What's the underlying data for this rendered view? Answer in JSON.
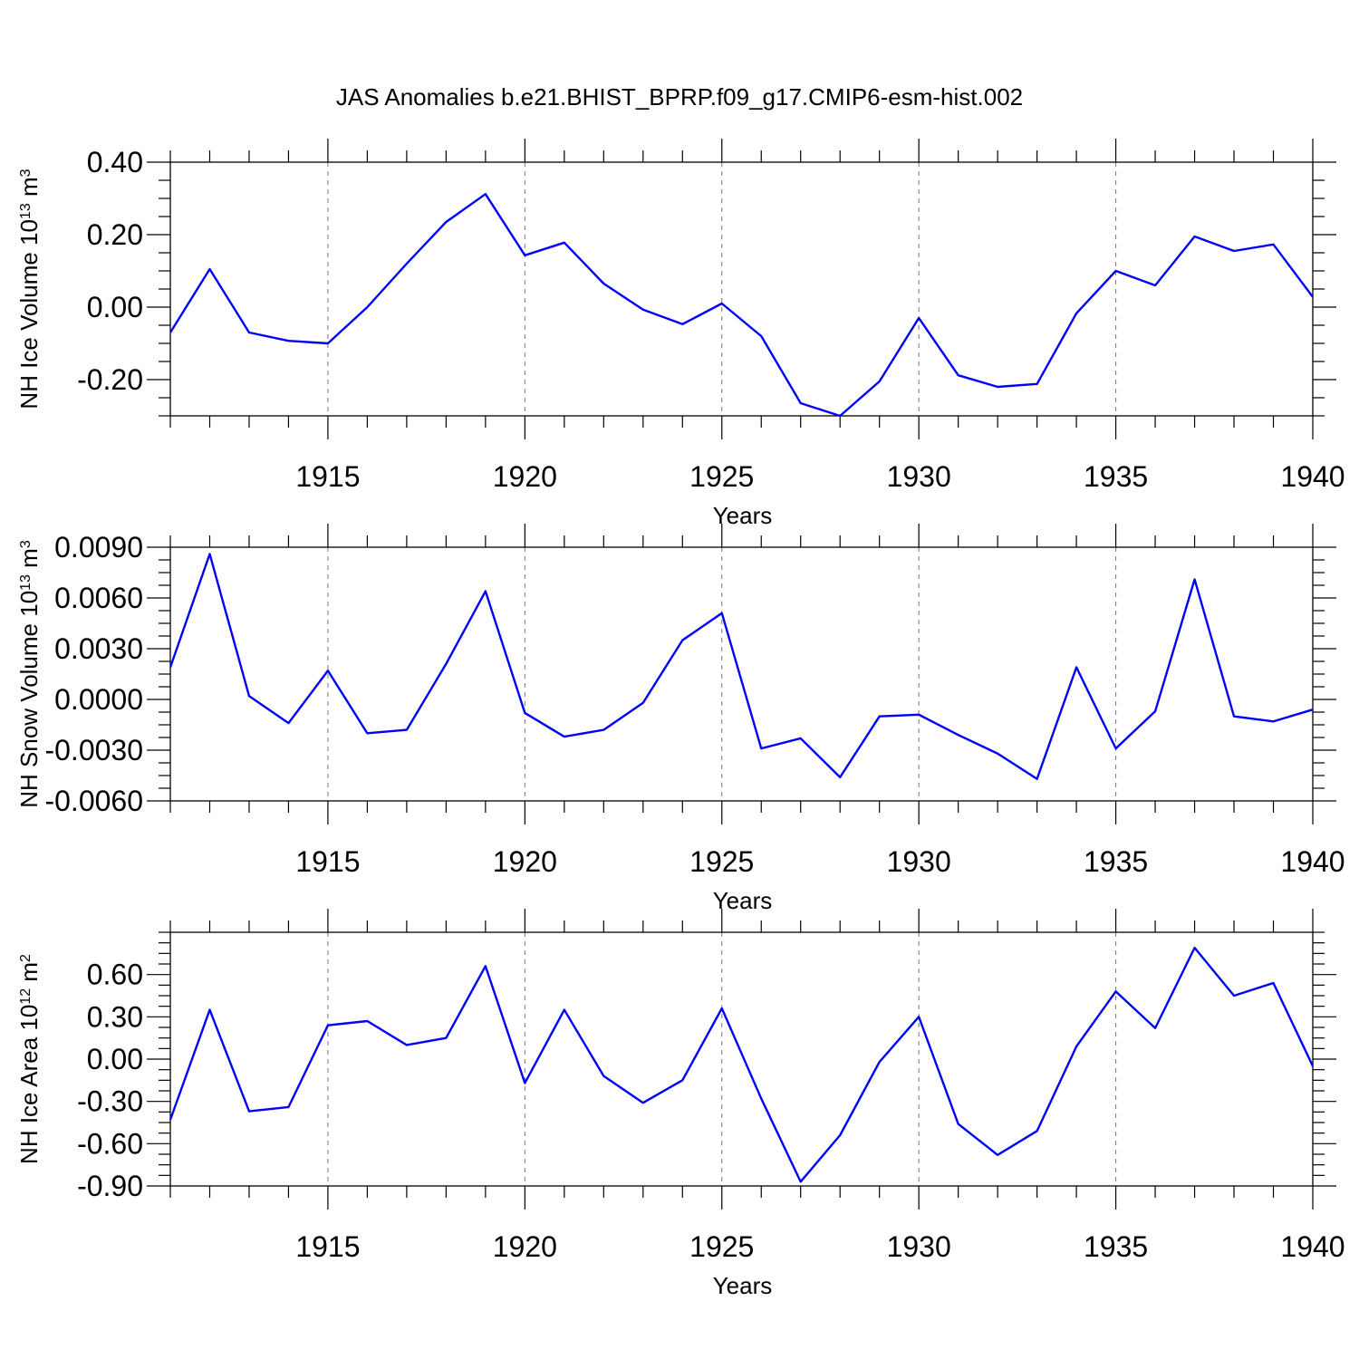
{
  "figure_title": "JAS Anomalies b.e21.BHIST_BPRP.f09_g17.CMIP6-esm-hist.002",
  "colors": {
    "series": "#0000ff",
    "grid": "#777777",
    "axis": "#000000"
  },
  "chart_data": [
    {
      "type": "line",
      "title": "",
      "xlabel": "Years",
      "ylabel_base": "NH Ice Volume 10",
      "ylabel_exp": "13",
      "ylabel_unit": " m",
      "ylabel_unit_exp": "3",
      "xlim": [
        1911,
        1940
      ],
      "ylim": [
        -0.3,
        0.4
      ],
      "yticks": [
        -0.2,
        0.0,
        0.2,
        0.4
      ],
      "ytick_labels": [
        "-0.20",
        "0.00",
        "0.20",
        "0.40"
      ],
      "ytick_minor_step": 0.05,
      "xticks": [
        1915,
        1920,
        1925,
        1930,
        1935,
        1940
      ],
      "xtick_labels": [
        "1915",
        "1920",
        "1925",
        "1930",
        "1935",
        "1940"
      ],
      "grid": "vertical dashed at major x ticks",
      "series": [
        {
          "x": [
            1911,
            1912,
            1913,
            1914,
            1915,
            1916,
            1917,
            1918,
            1919,
            1920,
            1921,
            1922,
            1923,
            1924,
            1925,
            1926,
            1927,
            1928,
            1929,
            1930,
            1931,
            1932,
            1933,
            1934,
            1935,
            1936,
            1937,
            1938,
            1939,
            1940
          ],
          "values": [
            -0.07,
            0.105,
            -0.07,
            -0.093,
            -0.1,
            0.0,
            0.12,
            0.235,
            0.312,
            0.143,
            0.178,
            0.065,
            -0.007,
            -0.047,
            0.01,
            -0.08,
            -0.265,
            -0.3,
            -0.205,
            -0.03,
            -0.188,
            -0.22,
            -0.212,
            -0.017,
            0.1,
            0.06,
            0.195,
            0.155,
            0.173,
            0.028
          ]
        }
      ]
    },
    {
      "type": "line",
      "title": "",
      "xlabel": "Years",
      "ylabel_base": "NH Snow Volume 10",
      "ylabel_exp": "13",
      "ylabel_unit": " m",
      "ylabel_unit_exp": "3",
      "xlim": [
        1911,
        1940
      ],
      "ylim": [
        -0.006,
        0.009
      ],
      "yticks": [
        -0.006,
        -0.003,
        0.0,
        0.003,
        0.006,
        0.009
      ],
      "ytick_labels": [
        "-0.0060",
        "-0.0030",
        "0.0000",
        "0.0030",
        "0.0060",
        "0.0090"
      ],
      "ytick_minor_step": 0.00075,
      "xticks": [
        1915,
        1920,
        1925,
        1930,
        1935,
        1940
      ],
      "xtick_labels": [
        "1915",
        "1920",
        "1925",
        "1930",
        "1935",
        "1940"
      ],
      "grid": "vertical dashed at major x ticks",
      "series": [
        {
          "x": [
            1911,
            1912,
            1913,
            1914,
            1915,
            1916,
            1917,
            1918,
            1919,
            1920,
            1921,
            1922,
            1923,
            1924,
            1925,
            1926,
            1927,
            1928,
            1929,
            1930,
            1931,
            1932,
            1933,
            1934,
            1935,
            1936,
            1937,
            1938,
            1939,
            1940
          ],
          "values": [
            0.0019,
            0.0086,
            0.0002,
            -0.0014,
            0.0017,
            -0.002,
            -0.0018,
            0.0021,
            0.0064,
            -0.0008,
            -0.0022,
            -0.0018,
            -0.0002,
            0.0035,
            0.0051,
            -0.0029,
            -0.0023,
            -0.0046,
            -0.001,
            -0.0009,
            -0.0021,
            -0.0032,
            -0.0047,
            0.0019,
            -0.0029,
            -0.0007,
            0.0071,
            -0.001,
            -0.0013,
            -0.0006
          ]
        }
      ]
    },
    {
      "type": "line",
      "title": "",
      "xlabel": "Years",
      "ylabel_base": "NH Ice Area 10",
      "ylabel_exp": "12",
      "ylabel_unit": " m",
      "ylabel_unit_exp": "2",
      "xlim": [
        1911,
        1940
      ],
      "ylim": [
        -0.9,
        0.9
      ],
      "yticks": [
        -0.9,
        -0.6,
        -0.3,
        0.0,
        0.3,
        0.6
      ],
      "ytick_labels": [
        "-0.90",
        "-0.60",
        "-0.30",
        "0.00",
        "0.30",
        "0.60"
      ],
      "ytick_minor_step": 0.075,
      "xticks": [
        1915,
        1920,
        1925,
        1930,
        1935,
        1940
      ],
      "xtick_labels": [
        "1915",
        "1920",
        "1925",
        "1930",
        "1935",
        "1940"
      ],
      "grid": "vertical dashed at major x ticks",
      "series": [
        {
          "x": [
            1911,
            1912,
            1913,
            1914,
            1915,
            1916,
            1917,
            1918,
            1919,
            1920,
            1921,
            1922,
            1923,
            1924,
            1925,
            1926,
            1927,
            1928,
            1929,
            1930,
            1931,
            1932,
            1933,
            1934,
            1935,
            1936,
            1937,
            1938,
            1939,
            1940
          ],
          "values": [
            -0.43,
            0.35,
            -0.37,
            -0.34,
            0.24,
            0.27,
            0.1,
            0.15,
            0.66,
            -0.17,
            0.35,
            -0.12,
            -0.31,
            -0.15,
            0.36,
            -0.28,
            -0.87,
            -0.54,
            -0.02,
            0.3,
            -0.46,
            -0.68,
            -0.51,
            0.09,
            0.48,
            0.22,
            0.79,
            0.45,
            0.54,
            -0.05
          ]
        }
      ]
    }
  ]
}
